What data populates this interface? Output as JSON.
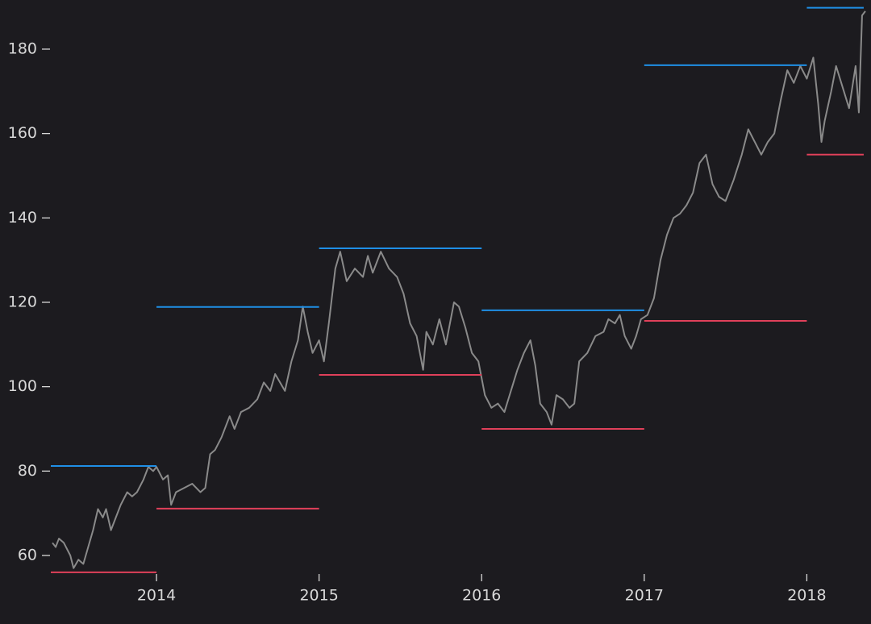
{
  "chart_data": {
    "type": "line",
    "color": "#8a8a8a",
    "x": [
      2013.36,
      2013.38,
      2013.4,
      2013.43,
      2013.47,
      2013.49,
      2013.52,
      2013.55,
      2013.58,
      2013.61,
      2013.64,
      2013.67,
      2013.69,
      2013.72,
      2013.75,
      2013.78,
      2013.82,
      2013.85,
      2013.88,
      2013.92,
      2013.95,
      2013.98,
      2014.0,
      2014.04,
      2014.07,
      2014.09,
      2014.12,
      2014.17,
      2014.22,
      2014.27,
      2014.3,
      2014.33,
      2014.36,
      2014.4,
      2014.45,
      2014.48,
      2014.52,
      2014.57,
      2014.62,
      2014.66,
      2014.7,
      2014.73,
      2014.76,
      2014.79,
      2014.83,
      2014.87,
      2014.9,
      2014.93,
      2014.96,
      2015.0,
      2015.03,
      2015.06,
      2015.1,
      2015.13,
      2015.17,
      2015.22,
      2015.27,
      2015.3,
      2015.33,
      2015.38,
      2015.43,
      2015.48,
      2015.52,
      2015.56,
      2015.6,
      2015.64,
      2015.66,
      2015.7,
      2015.74,
      2015.78,
      2015.83,
      2015.86,
      2015.9,
      2015.94,
      2015.98,
      2016.02,
      2016.06,
      2016.1,
      2016.14,
      2016.18,
      2016.22,
      2016.26,
      2016.3,
      2016.33,
      2016.36,
      2016.4,
      2016.43,
      2016.46,
      2016.5,
      2016.54,
      2016.57,
      2016.6,
      2016.65,
      2016.7,
      2016.75,
      2016.78,
      2016.82,
      2016.85,
      2016.88,
      2016.92,
      2016.95,
      2016.98,
      2017.02,
      2017.06,
      2017.1,
      2017.14,
      2017.18,
      2017.22,
      2017.26,
      2017.3,
      2017.34,
      2017.38,
      2017.42,
      2017.46,
      2017.5,
      2017.55,
      2017.6,
      2017.64,
      2017.68,
      2017.72,
      2017.76,
      2017.8,
      2017.84,
      2017.88,
      2017.92,
      2017.96,
      2018.0,
      2018.04,
      2018.07,
      2018.09,
      2018.11,
      2018.15,
      2018.18,
      2018.22,
      2018.26,
      2018.3,
      2018.32,
      2018.34,
      2018.36
    ],
    "values": [
      63,
      62,
      64,
      63,
      60,
      57,
      59,
      58,
      62,
      66,
      71,
      69,
      71,
      66,
      69,
      72,
      75,
      74,
      75,
      78,
      81,
      80,
      81,
      78,
      79,
      72,
      75,
      76,
      77,
      75,
      76,
      84,
      85,
      88,
      93,
      90,
      94,
      95,
      97,
      101,
      99,
      103,
      101,
      99,
      106,
      111,
      119,
      113,
      108,
      111,
      106,
      115,
      128,
      132,
      125,
      128,
      126,
      131,
      127,
      132,
      128,
      126,
      122,
      115,
      112,
      104,
      113,
      110,
      116,
      110,
      120,
      119,
      114,
      108,
      106,
      98,
      95,
      96,
      94,
      99,
      104,
      108,
      111,
      105,
      96,
      94,
      91,
      98,
      97,
      95,
      96,
      106,
      108,
      112,
      113,
      116,
      115,
      117,
      112,
      109,
      112,
      116,
      117,
      121,
      130,
      136,
      140,
      141,
      143,
      146,
      153,
      155,
      148,
      145,
      144,
      149,
      155,
      161,
      158,
      155,
      158,
      160,
      168,
      175,
      172,
      176,
      173,
      178,
      167,
      158,
      163,
      170,
      176,
      171,
      166,
      176,
      165,
      188,
      189
    ],
    "xlim": [
      2013.35,
      2018.37
    ],
    "xticks": [
      2014,
      2015,
      2016,
      2017,
      2018
    ],
    "ylim": [
      54,
      190.5
    ],
    "yticks": [
      60,
      80,
      100,
      120,
      140,
      160,
      180
    ],
    "ranges": {
      "start": [
        2013.35,
        2014,
        2015,
        2016,
        2017,
        2018
      ],
      "end": [
        2014,
        2015,
        2016,
        2017,
        2018,
        2018.35
      ],
      "high": [
        81.2,
        118.9,
        132.8,
        118.1,
        176.2,
        189.8
      ],
      "low": [
        56.0,
        71.1,
        102.8,
        90.0,
        115.6,
        155.0
      ],
      "high_color": "#1f8fe6",
      "low_color": "#e0405a"
    }
  }
}
